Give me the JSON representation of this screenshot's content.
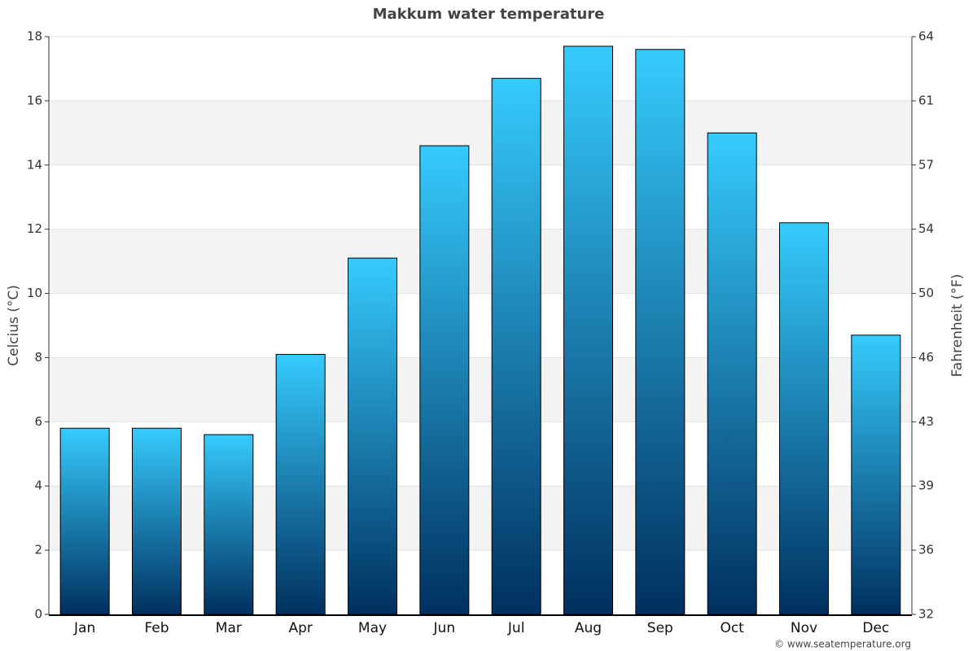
{
  "chart_data": {
    "type": "bar",
    "title": "Makkum water temperature",
    "categories": [
      "Jan",
      "Feb",
      "Mar",
      "Apr",
      "May",
      "Jun",
      "Jul",
      "Aug",
      "Sep",
      "Oct",
      "Nov",
      "Dec"
    ],
    "values": [
      5.8,
      5.8,
      5.6,
      8.1,
      11.1,
      14.6,
      16.7,
      17.7,
      17.6,
      15,
      12.2,
      8.7
    ],
    "gradient": [
      "#36cbfd",
      "#00305f"
    ],
    "ylabel": "Celcius (°C)",
    "y2label": "Fahrenheit (°F)",
    "ylim": [
      0,
      18
    ],
    "yticks": [
      0,
      2,
      4,
      6,
      8,
      10,
      12,
      14,
      16,
      18
    ],
    "y2lim": [
      32,
      64.4
    ],
    "y2ticks": [
      32,
      {
        "value": 35.6,
        "label": "36"
      },
      {
        "value": 39.2,
        "label": "39"
      },
      {
        "value": 42.8,
        "label": "43"
      },
      {
        "value": 46.4,
        "label": "46"
      },
      50,
      {
        "value": 53.6,
        "label": "54"
      },
      {
        "value": 57.2,
        "label": "57"
      },
      {
        "value": 60.8,
        "label": "61"
      },
      {
        "value": 64.4,
        "label": "64"
      }
    ],
    "grid": true,
    "band_color": "#f3f3f3",
    "source": "© www.seatemperature.org"
  }
}
